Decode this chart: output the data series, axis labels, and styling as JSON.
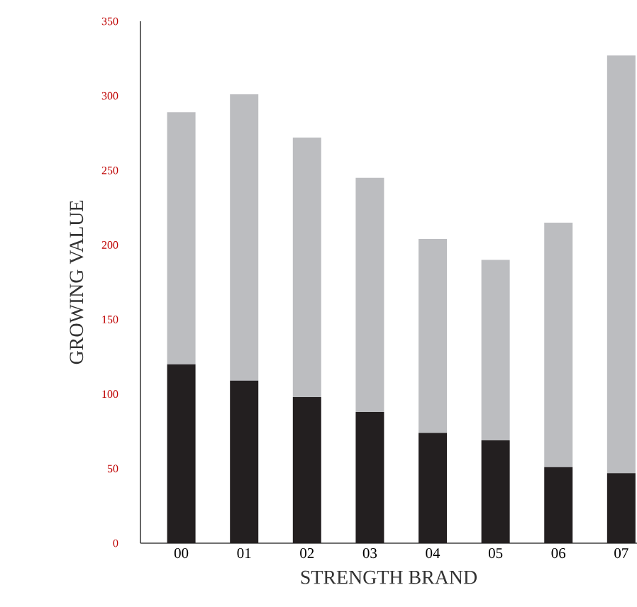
{
  "chart_data": {
    "type": "bar",
    "stacked": true,
    "xlabel": "STRENGTH BRAND",
    "ylabel": "GROWING VALUE",
    "categories": [
      "00",
      "01",
      "02",
      "03",
      "04",
      "05",
      "06",
      "07"
    ],
    "series": [
      {
        "color": "#231f20",
        "values": [
          120,
          109,
          98,
          88,
          74,
          69,
          51,
          47
        ]
      },
      {
        "color": "#bcbdc0",
        "values": [
          169,
          192,
          174,
          157,
          130,
          121,
          164,
          280
        ]
      }
    ],
    "ylim": [
      0,
      350
    ],
    "yticks": [
      0,
      50,
      100,
      150,
      200,
      250,
      300,
      350
    ],
    "grid": false,
    "legend": false
  }
}
